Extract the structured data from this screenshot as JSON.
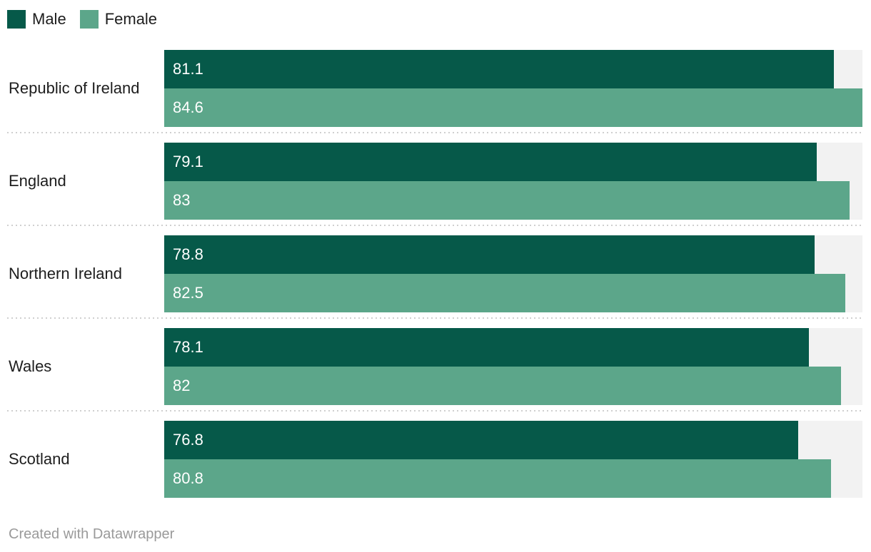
{
  "chart_data": {
    "type": "bar",
    "orientation": "horizontal",
    "title": "",
    "categories": [
      "Republic of Ireland",
      "England",
      "Northern Ireland",
      "Wales",
      "Scotland"
    ],
    "series": [
      {
        "name": "Male",
        "color": "#065949",
        "values": [
          81.1,
          79.1,
          78.8,
          78.1,
          76.8
        ]
      },
      {
        "name": "Female",
        "color": "#5CA68A",
        "values": [
          84.6,
          83,
          82.5,
          82,
          80.8
        ]
      }
    ],
    "value_labels": [
      [
        "81.1",
        "79.1",
        "78.8",
        "78.1",
        "76.8"
      ],
      [
        "84.6",
        "83",
        "82.5",
        "82",
        "80.8"
      ]
    ],
    "scale_max": 84.6,
    "track_color": "#F2F2F2",
    "grid": false,
    "legend": {
      "position": "top-left",
      "entries": [
        "Male",
        "Female"
      ]
    }
  },
  "footer": {
    "credit": "Created with Datawrapper"
  }
}
